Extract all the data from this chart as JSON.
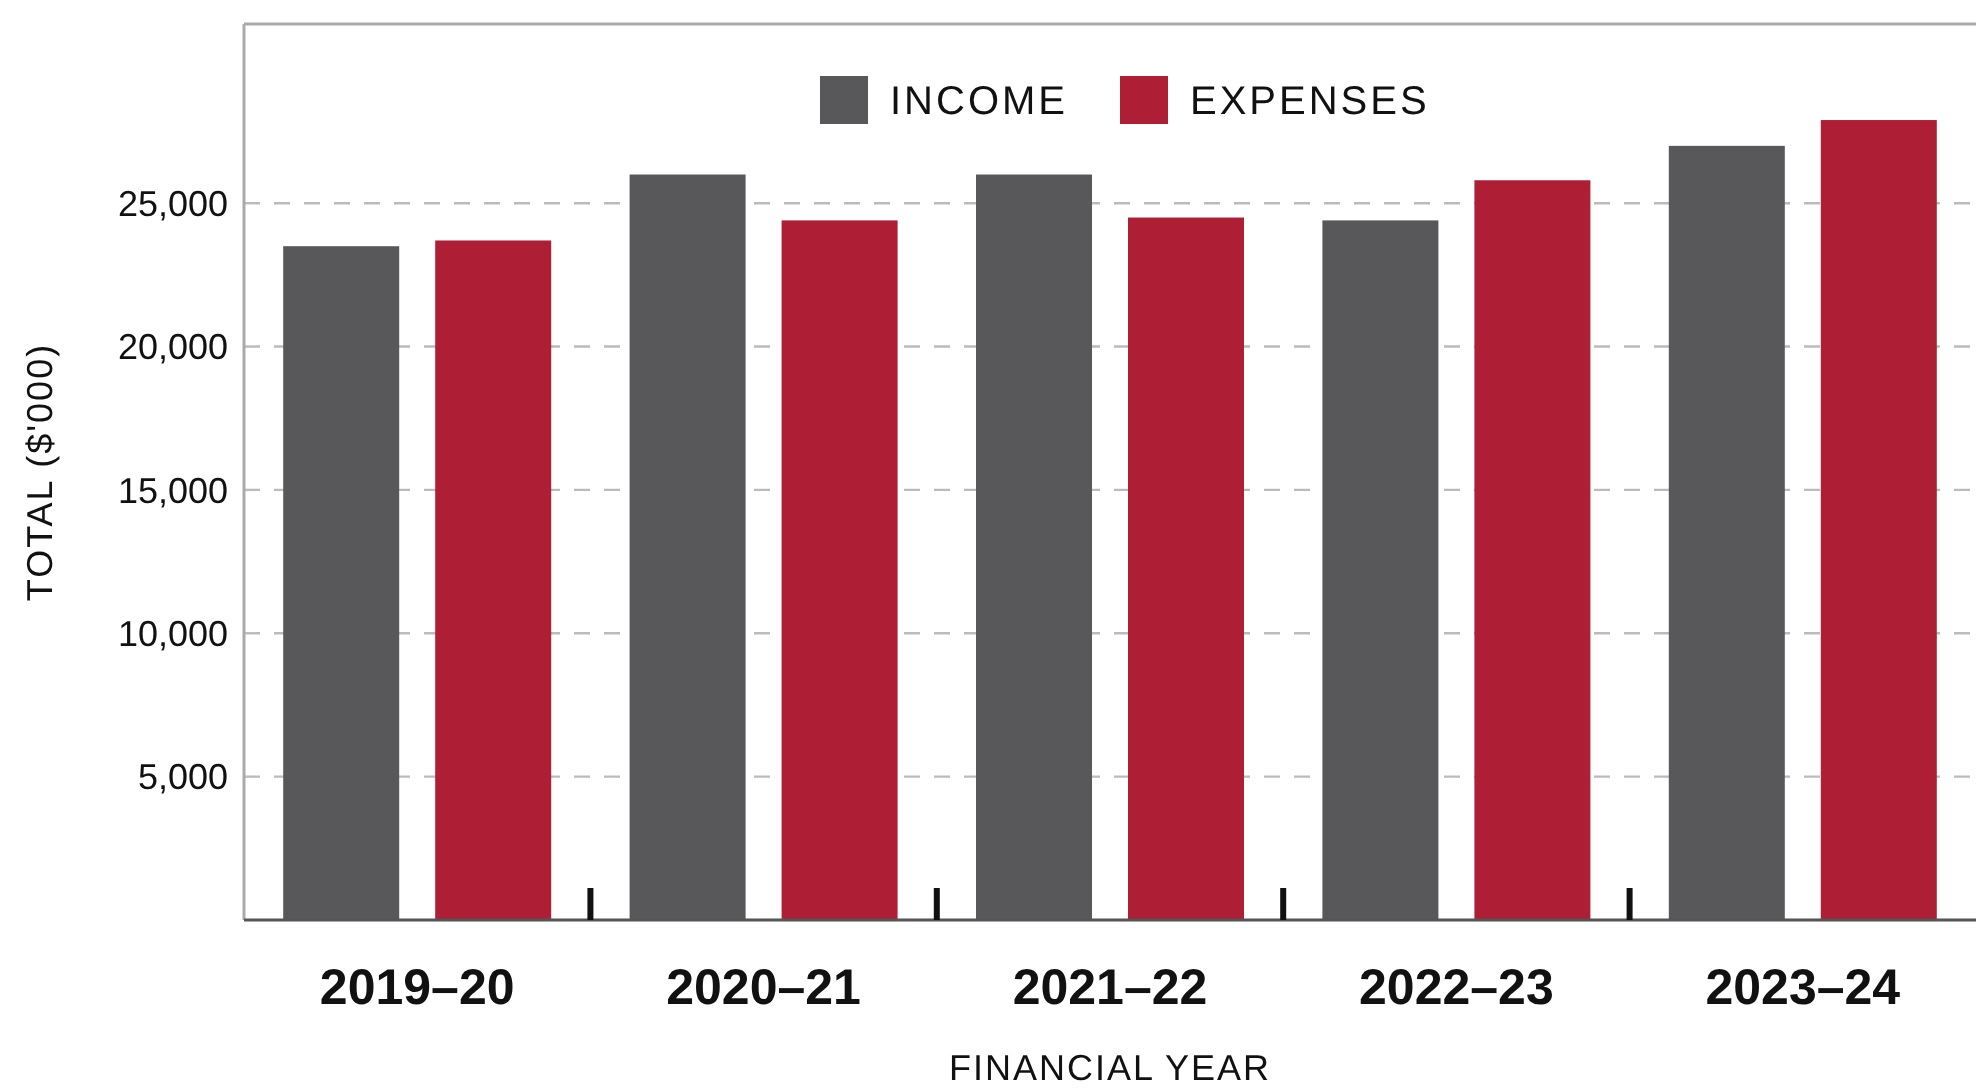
{
  "chart_data": {
    "type": "bar",
    "xlabel": "FINANCIAL YEAR",
    "ylabel": "TOTAL ($'000)",
    "categories": [
      "2019–20",
      "2020–21",
      "2021–22",
      "2022–23",
      "2023–24"
    ],
    "series": [
      {
        "name": "INCOME",
        "color": "#58585a",
        "values": [
          23500,
          26000,
          26000,
          24400,
          27000
        ]
      },
      {
        "name": "EXPENSES",
        "color": "#ae1e35",
        "values": [
          23700,
          24400,
          24500,
          25800,
          27900
        ]
      }
    ],
    "ylim": [
      0,
      31250
    ],
    "yticks": [
      {
        "value": 5000,
        "label": "5,000"
      },
      {
        "value": 10000,
        "label": "10,000"
      },
      {
        "value": 15000,
        "label": "15,000"
      },
      {
        "value": 20000,
        "label": "20,000"
      },
      {
        "value": 25000,
        "label": "25,000"
      }
    ],
    "grid": "y",
    "legend": "top"
  }
}
